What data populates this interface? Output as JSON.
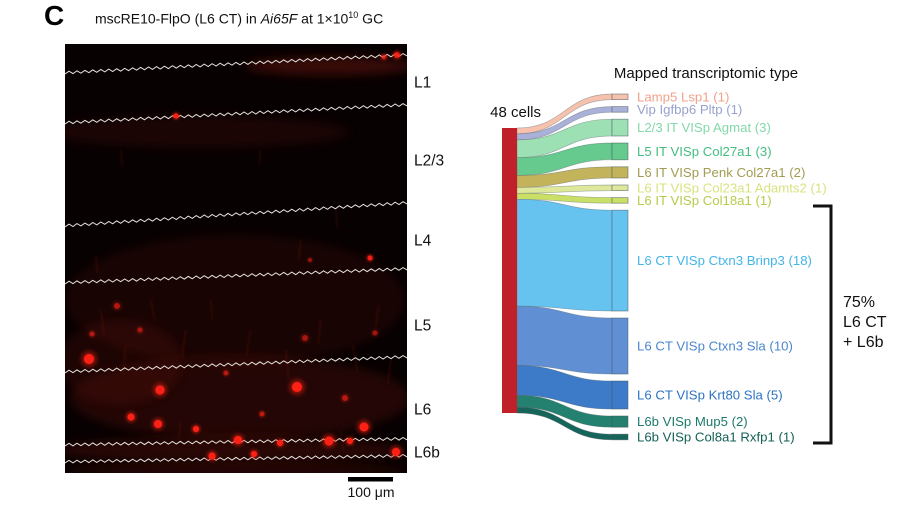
{
  "panel_label": "C",
  "title": {
    "prefix": "mscRE10-FlpO (L6 CT) in ",
    "italic": "Ai65F",
    "mid": " at 1×10",
    "sup": "10",
    "suffix": " GC"
  },
  "micrograph": {
    "layer_labels": [
      "L1",
      "L2/3",
      "L4",
      "L5",
      "L6",
      "L6b"
    ],
    "scale_bar": "100 μm",
    "signal_color": "#ff2015",
    "boundary_line_color": "#f2efe9"
  },
  "chart_data": {
    "type": "sankey",
    "title": "Mapped transcriptomic type",
    "source_label": "48 cells",
    "source_total": 48,
    "source_color": "#c02029",
    "flows": [
      {
        "label": "Lamp5 Lsp1 (1)",
        "target": "Lamp5 Lsp1",
        "count": 1,
        "color": "#f6c2ad",
        "text_color": "#f0a28b"
      },
      {
        "label": "Vip Igfbp6 Pltp (1)",
        "target": "Vip Igfbp6 Pltp",
        "count": 1,
        "color": "#a9b1d9",
        "text_color": "#98a2ce"
      },
      {
        "label": "L2/3 IT VISp Agmat (3)",
        "target": "L2/3 IT VISp Agmat",
        "count": 3,
        "color": "#9ce0b4",
        "text_color": "#83d9a9"
      },
      {
        "label": "L5 IT VISp Col27a1 (3)",
        "target": "L5 IT VISp Col27a1",
        "count": 3,
        "color": "#66c98e",
        "text_color": "#43bd80"
      },
      {
        "label": "L6 IT VISp Penk Col27a1 (2)",
        "target": "L6 IT VISp Penk Col27a1",
        "count": 2,
        "color": "#c3b45c",
        "text_color": "#a29c52"
      },
      {
        "label": "L6 IT VISp Col23a1 Adamts2 (1)",
        "target": "L6 IT VISp Col23a1 Adamts2",
        "count": 1,
        "color": "#dde89b",
        "text_color": "#d9e37e"
      },
      {
        "label": "L6 IT VISp Col18a1 (1)",
        "target": "L6 IT VISp Col18a1",
        "count": 1,
        "color": "#cadf66",
        "text_color": "#b4cc4c"
      },
      {
        "label": "L6 CT VISp Ctxn3 Brinp3 (18)",
        "target": "L6 CT VISp Ctxn3 Brinp3",
        "count": 18,
        "color": "#66c3ef",
        "text_color": "#42b5e9"
      },
      {
        "label": "L6 CT VISp Ctxn3 Sla (10)",
        "target": "L6 CT VISp Ctxn3 Sla",
        "count": 10,
        "color": "#6090d3",
        "text_color": "#4b87cd"
      },
      {
        "label": "L6 CT VISp Krt80 Sla (5)",
        "target": "L6 CT VISp Krt80 Sla",
        "count": 5,
        "color": "#3d7bc8",
        "text_color": "#2e73c3"
      },
      {
        "label": "L6b VISp Mup5 (2)",
        "target": "L6b VISp Mup5",
        "count": 2,
        "color": "#24806f",
        "text_color": "#1d7a6c"
      },
      {
        "label": "L6b VISp Col8a1 Rxfp1 (1)",
        "target": "L6b VISp Col8a1 Rxfp1",
        "count": 1,
        "color": "#16655a",
        "text_color": "#145f55"
      }
    ],
    "annotation_lines": [
      "75%",
      "L6 CT",
      "+ L6b"
    ],
    "annotation_text": "75% L6 CT + L6b"
  }
}
